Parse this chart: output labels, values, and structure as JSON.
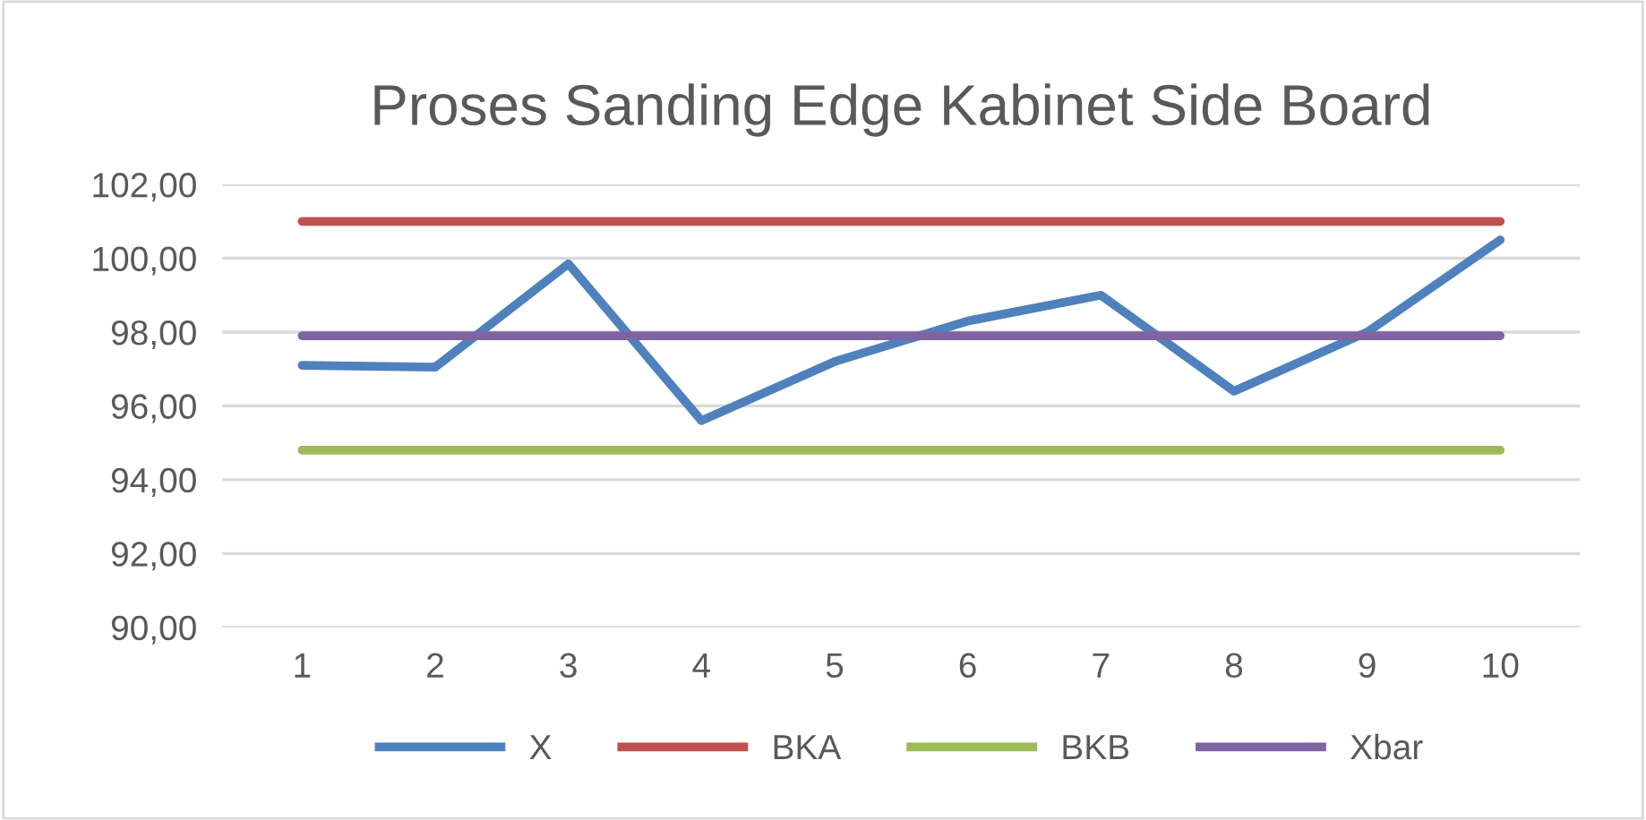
{
  "chart_data": {
    "type": "line",
    "title": "Proses Sanding Edge Kabinet Side Board",
    "categories": [
      "1",
      "2",
      "3",
      "4",
      "5",
      "6",
      "7",
      "8",
      "9",
      "10"
    ],
    "series": [
      {
        "name": "X",
        "color": "#4f81bd",
        "values": [
          97.1,
          97.05,
          99.85,
          95.6,
          97.2,
          98.3,
          99.0,
          96.4,
          98.0,
          100.5
        ]
      },
      {
        "name": "BKA",
        "color": "#c0504d",
        "values": [
          101.0,
          101.0,
          101.0,
          101.0,
          101.0,
          101.0,
          101.0,
          101.0,
          101.0,
          101.0
        ]
      },
      {
        "name": "BKB",
        "color": "#9bbb59",
        "values": [
          94.8,
          94.8,
          94.8,
          94.8,
          94.8,
          94.8,
          94.8,
          94.8,
          94.8,
          94.8
        ]
      },
      {
        "name": "Xbar",
        "color": "#8064a2",
        "values": [
          97.9,
          97.9,
          97.9,
          97.9,
          97.9,
          97.9,
          97.9,
          97.9,
          97.9,
          97.9
        ]
      }
    ],
    "ylim": [
      90,
      102
    ],
    "yticks": [
      {
        "value": 90,
        "label": "90,00"
      },
      {
        "value": 92,
        "label": "92,00"
      },
      {
        "value": 94,
        "label": "94,00"
      },
      {
        "value": 96,
        "label": "96,00"
      },
      {
        "value": 98,
        "label": "98,00"
      },
      {
        "value": 100,
        "label": "100,00"
      },
      {
        "value": 102,
        "label": "102,00"
      }
    ],
    "grid": "y",
    "legend": "bottom",
    "marker": "none",
    "line_style": "solid"
  }
}
